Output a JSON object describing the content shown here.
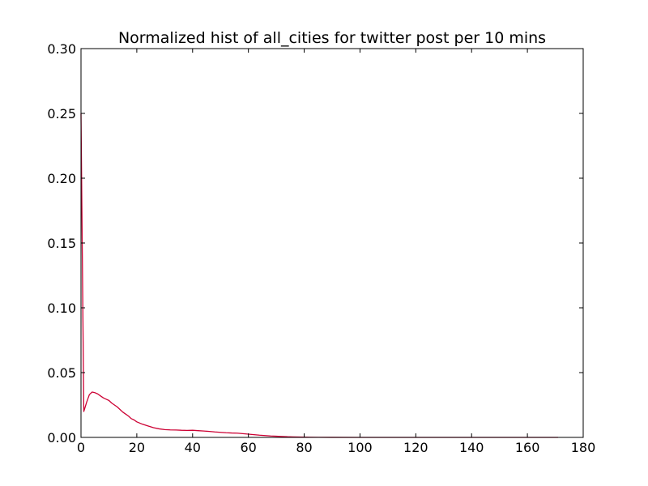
{
  "chart_data": {
    "type": "line",
    "title": "Normalized hist of all_cities for twitter post per 10 mins",
    "xlabel": "",
    "ylabel": "",
    "xlim": [
      0,
      180
    ],
    "ylim": [
      0,
      0.3
    ],
    "xticks": [
      0,
      20,
      40,
      60,
      80,
      100,
      120,
      140,
      160,
      180
    ],
    "yticks": [
      0.0,
      0.05,
      0.1,
      0.15,
      0.2,
      0.25,
      0.3
    ],
    "xtick_labels": [
      "0",
      "20",
      "40",
      "60",
      "80",
      "100",
      "120",
      "140",
      "160",
      "180"
    ],
    "ytick_labels": [
      "0.00",
      "0.05",
      "0.10",
      "0.15",
      "0.20",
      "0.25",
      "0.30"
    ],
    "grid": false,
    "legend": "none",
    "series": [
      {
        "color": "#cc0033",
        "x": [
          0,
          1,
          2,
          3,
          4,
          5,
          6,
          7,
          8,
          9,
          10,
          11,
          12,
          13,
          14,
          15,
          16,
          17,
          18,
          19,
          20,
          22,
          24,
          26,
          28,
          30,
          32,
          34,
          36,
          38,
          40,
          42,
          44,
          46,
          48,
          50,
          52,
          54,
          56,
          58,
          60,
          62,
          64,
          66,
          68,
          70,
          72,
          74,
          76,
          78,
          80,
          85,
          90,
          100,
          110,
          120,
          130,
          140,
          150,
          160,
          171
        ],
        "y": [
          0.25,
          0.02,
          0.027,
          0.033,
          0.035,
          0.0345,
          0.0335,
          0.032,
          0.0305,
          0.0295,
          0.0285,
          0.0265,
          0.025,
          0.0235,
          0.0215,
          0.0195,
          0.018,
          0.0165,
          0.0145,
          0.0135,
          0.012,
          0.0102,
          0.0088,
          0.0075,
          0.0066,
          0.006,
          0.0058,
          0.0057,
          0.0055,
          0.0054,
          0.0055,
          0.0052,
          0.0049,
          0.0046,
          0.0042,
          0.0039,
          0.0036,
          0.0034,
          0.0033,
          0.0029,
          0.0025,
          0.0021,
          0.0017,
          0.0014,
          0.0011,
          0.0009,
          0.0007,
          0.0005,
          0.0004,
          0.0003,
          0.0002,
          0.0001,
          5e-05,
          2e-05,
          1e-05,
          0,
          0,
          0,
          0,
          0,
          0
        ]
      }
    ]
  }
}
